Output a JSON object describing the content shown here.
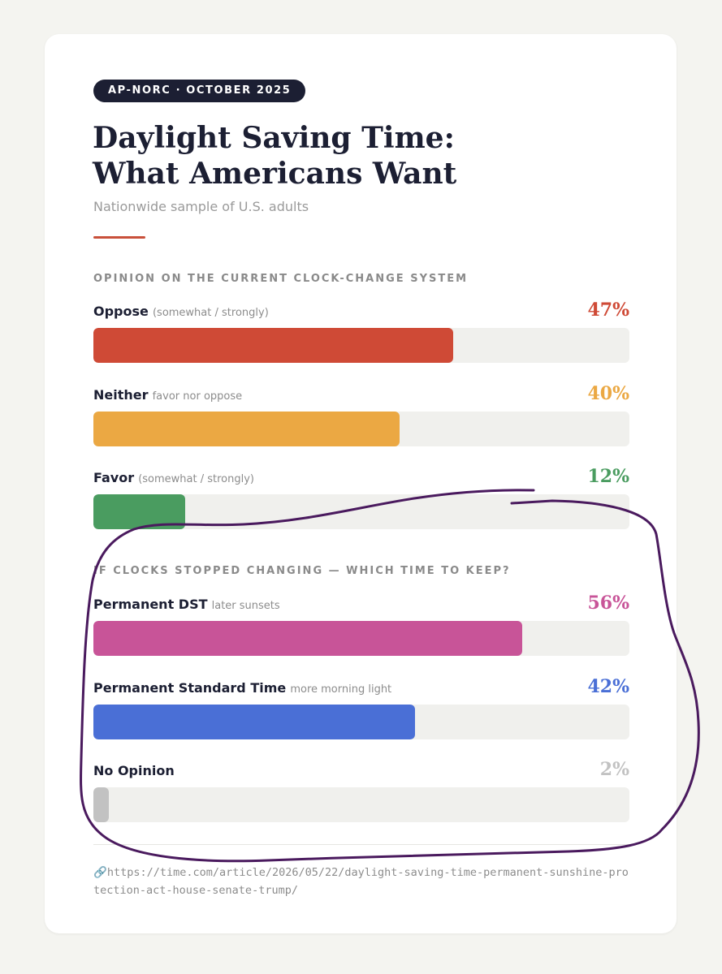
{
  "badge": "AP-NORC · OCTOBER 2025",
  "title_lines": [
    "Daylight Saving Time:",
    "What Americans Want"
  ],
  "subtitle": "Nationwide sample of U.S. adults",
  "source_url": "https://time.com/article/2026/05/22/daylight-saving-time-permanent-sunshine-protection-act-house-senate-trump/",
  "colors": {
    "oppose": "#cf4a36",
    "neither": "#eba843",
    "favor": "#4a9c60",
    "dst": "#c85498",
    "standard": "#4a6fd6",
    "no_opinion": "#c2c2c2",
    "annotation": "#4a1a5e"
  },
  "chart_data": [
    {
      "type": "bar",
      "title": "OPINION ON THE CURRENT CLOCK-CHANGE SYSTEM",
      "unit": "%",
      "categories": [
        {
          "label": "Oppose",
          "note": "(somewhat / strongly)",
          "value": 47,
          "value_label": "47%",
          "color_key": "oppose"
        },
        {
          "label": "Neither",
          "note": "favor nor oppose",
          "value": 40,
          "value_label": "40%",
          "color_key": "neither"
        },
        {
          "label": "Favor",
          "note": "(somewhat / strongly)",
          "value": 12,
          "value_label": "12%",
          "color_key": "favor"
        }
      ]
    },
    {
      "type": "bar",
      "title": "IF CLOCKS STOPPED CHANGING — WHICH TIME TO KEEP?",
      "unit": "%",
      "categories": [
        {
          "label": "Permanent DST",
          "note": "later sunsets",
          "value": 56,
          "value_label": "56%",
          "color_key": "dst"
        },
        {
          "label": "Permanent Standard Time",
          "note": "more morning light",
          "value": 42,
          "value_label": "42%",
          "color_key": "standard"
        },
        {
          "label": "No Opinion",
          "note": "",
          "value": 2,
          "value_label": "2%",
          "color_key": "no_opinion"
        }
      ]
    }
  ]
}
